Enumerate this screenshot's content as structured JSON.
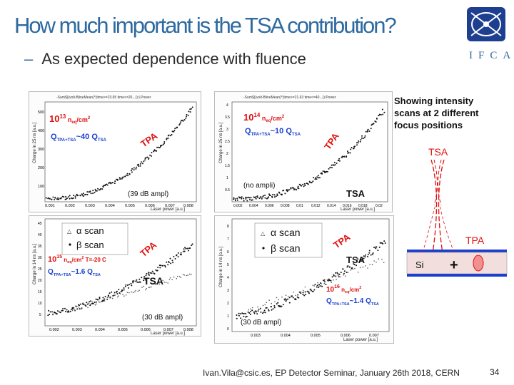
{
  "slide": {
    "title": "How much important is the TSA contribution?",
    "bullet": "As expected dependence with fluence",
    "logo_text": "IFCA",
    "footer": "Ivan.Vila@csic.es, EP Detector Seminar, January 26th 2018, CERN",
    "page_number": "34"
  },
  "plot_tl": {
    "header": "-Sum$((volt-BlineMean)*(time>=23.65 time<=26...)):LPower",
    "ylabel": "Charge in 25 ns [a.u.]",
    "xlabel": "Laser power [a.u.]",
    "fluence": "10",
    "fluence_exp": "13",
    "fluence_unit": "n",
    "fluence_sub": "eq",
    "fluence_tail": "/cm",
    "fluence_tail_sup": "2",
    "q_text": "Q",
    "q_sub": "TPA+TSA",
    "q_mid": "~40 Q",
    "q_sub2": "TSA",
    "tpa": "TPA",
    "ampl": "(39 dB ampl)",
    "xticks": [
      "0.001",
      "0.002",
      "0.003",
      "0.004",
      "0.005",
      "0.006",
      "0.007",
      "0.008"
    ],
    "yticks": [
      "100",
      "200",
      "300",
      "400",
      "500"
    ]
  },
  "plot_tr": {
    "header": "-Sum$((volt-BlineMean)*(time>=21.63 time<=40...)):Power",
    "ylabel": "Charge in 25 ns [a.u.]",
    "xlabel": "Laser power [a.u.]",
    "fluence": "10",
    "fluence_exp": "14",
    "fluence_unit": "n",
    "fluence_sub": "eq",
    "fluence_tail": "/cm",
    "fluence_tail_sup": "2",
    "q_text": "Q",
    "q_sub": "TPA+TSA",
    "q_mid": "~10 Q",
    "q_sub2": "TSA",
    "tpa": "TPA",
    "tsa": "TSA",
    "ampl": "(no ampli)",
    "xticks": [
      "0.002",
      "0.004",
      "0.006",
      "0.008",
      "0.01",
      "0.012",
      "0.014",
      "0.016",
      "0.018",
      "0.02"
    ],
    "yticks": [
      "0.5",
      "1",
      "1.5",
      "2",
      "2.5",
      "3",
      "3.5",
      "4"
    ]
  },
  "plot_bl": {
    "ylabel": "Charge in 14 ns [a.u.]",
    "xlabel": "Laser power [a.u.]",
    "legend_alpha": "α scan",
    "legend_beta": "β scan",
    "fluence": "10",
    "fluence_exp": "15",
    "fluence_unit": "n",
    "fluence_sub": "eq",
    "fluence_tail": "/cm",
    "fluence_tail_sup": "2",
    "fluence_temp": " T=-20 C",
    "q_text": "Q",
    "q_sub": "TPA+TSA",
    "q_mid": "~1.6 Q",
    "q_sub2": "TSA",
    "tpa": "TPA",
    "tsa": "TSA",
    "ampl": "(30 dB ampl)",
    "xticks": [
      "0.002",
      "0.003",
      "0.004",
      "0.005",
      "0.006",
      "0.007",
      "0.008"
    ],
    "yticks": [
      "5",
      "10",
      "15",
      "20",
      "25",
      "30",
      "35",
      "40",
      "45"
    ]
  },
  "plot_br": {
    "ylabel": "Charge in 14 ns [a.u.]",
    "xlabel": "Laser power [a.u.]",
    "legend_alpha": "α scan",
    "legend_beta": "β scan",
    "fluence": "10",
    "fluence_exp": "16",
    "fluence_unit": "n",
    "fluence_sub": "eq",
    "fluence_tail": "/cm",
    "fluence_tail_sup": "2",
    "q_text": "Q",
    "q_sub": "TPA+TSA",
    "q_mid": "~1.4 Q",
    "q_sub2": "TSA",
    "tpa": "TPA",
    "tsa": "TSA",
    "ampl": "(30 dB ampl)",
    "xticks": [
      "0.003",
      "0.004",
      "0.005",
      "0.006",
      "0.007"
    ],
    "yticks": [
      "0",
      "1",
      "2",
      "3",
      "4",
      "5",
      "6",
      "7",
      "8"
    ]
  },
  "diagram": {
    "caption_line1": "Showing intensity",
    "caption_line2": "scans at 2 different",
    "caption_line3": "focus positions",
    "tsa_label": "TSA",
    "tpa_label": "TPA",
    "si_label": "Si",
    "plus": "+"
  }
}
